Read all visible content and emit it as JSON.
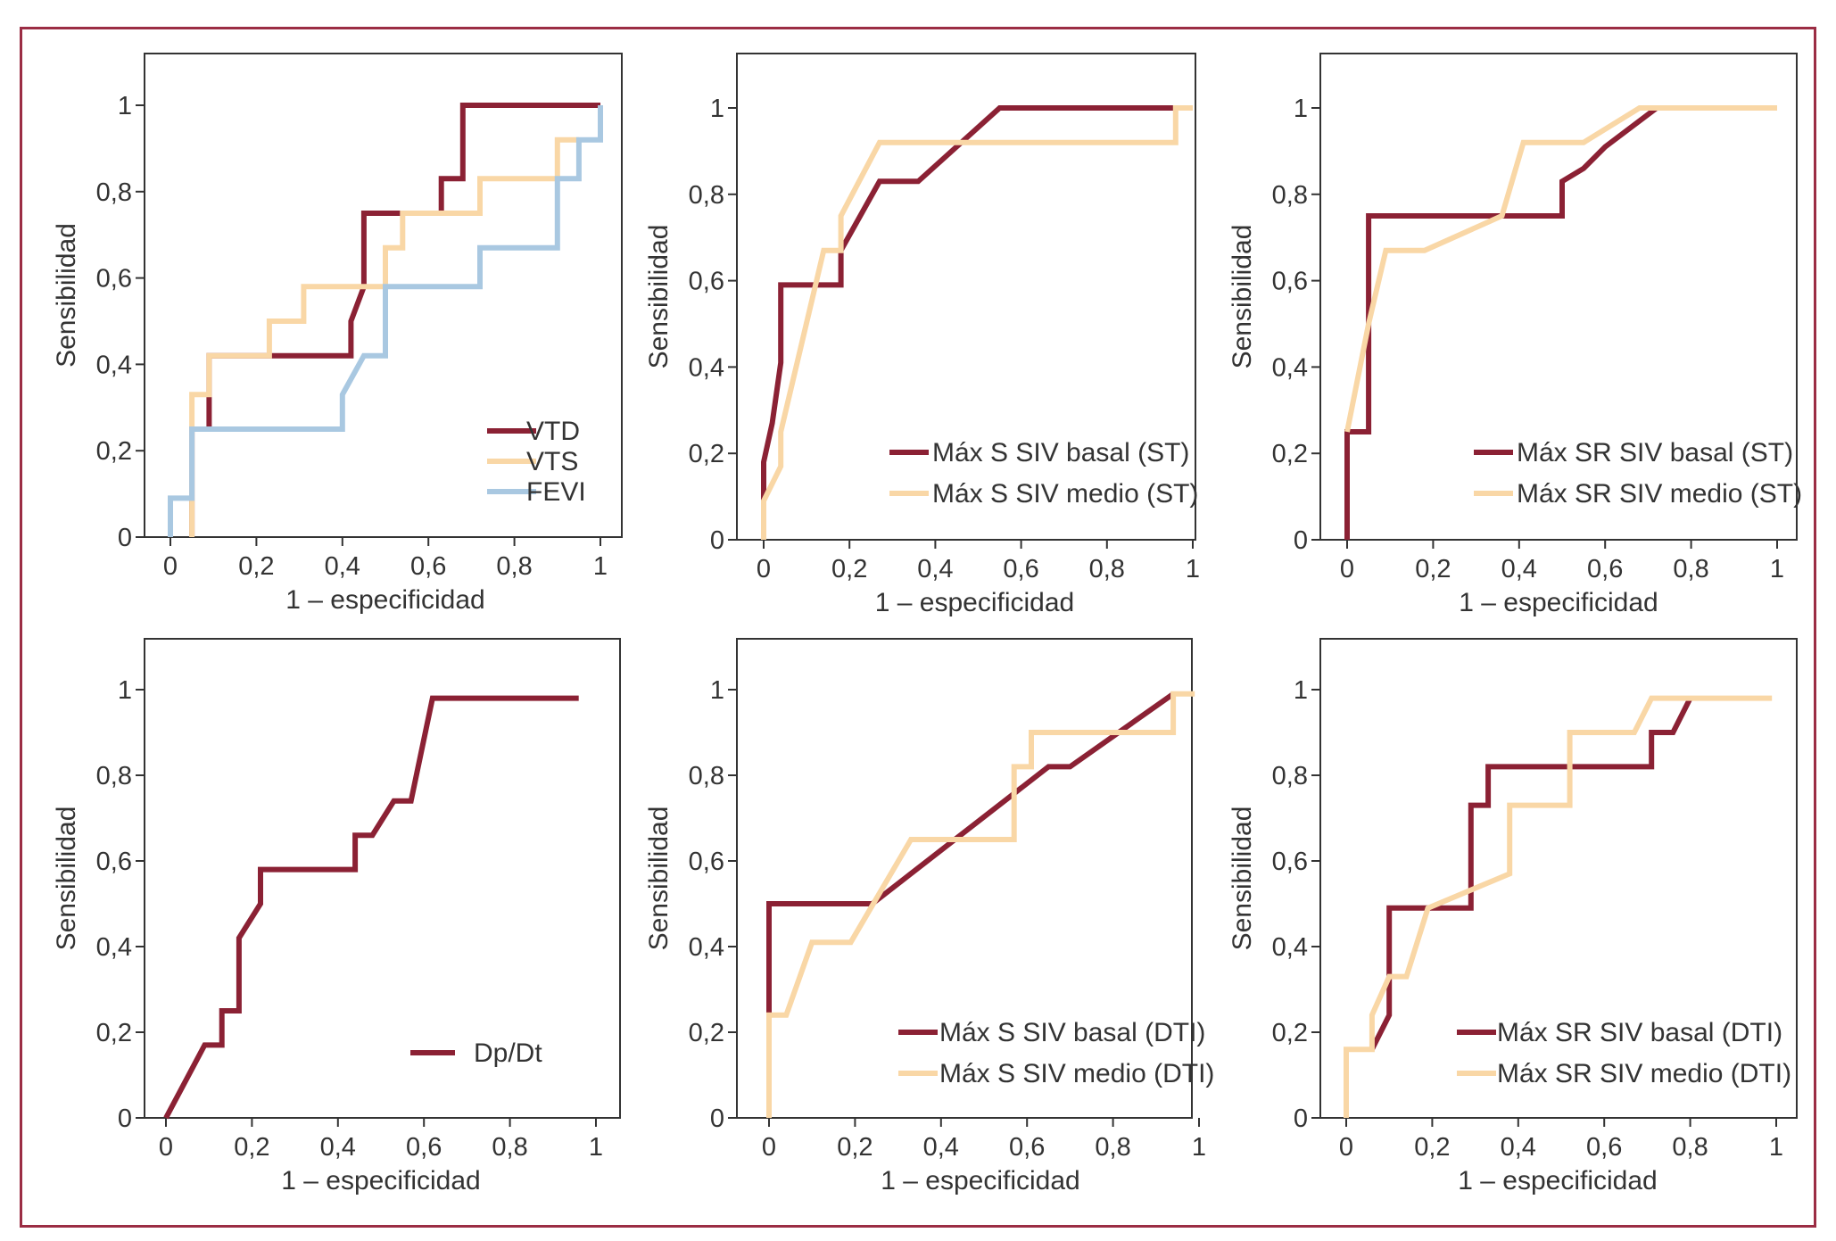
{
  "colors": {
    "dark_red": "#8b2134",
    "light_peach": "#f9d7a6",
    "light_blue": "#a9c8e1",
    "frame": "#9b2d44"
  },
  "chart_data": [
    {
      "type": "line",
      "xlabel": "1 – especificidad",
      "ylabel": "Sensibilidad",
      "xlim": [
        0,
        1
      ],
      "ylim": [
        0,
        1.1
      ],
      "xticks": [
        "0",
        "0,2",
        "0,4",
        "0,6",
        "0,8",
        "1"
      ],
      "yticks": [
        "0",
        "0,2",
        "0,4",
        "0,6",
        "0,8",
        "1"
      ],
      "legend_position": "bottom-right",
      "series": [
        {
          "name": "VTD",
          "color": "#8b2134",
          "x": [
            0.05,
            0.05,
            0.09,
            0.09,
            0.42,
            0.42,
            0.45,
            0.45,
            0.63,
            0.63,
            0.68,
            0.68,
            1.0
          ],
          "y": [
            0.0,
            0.25,
            0.25,
            0.42,
            0.42,
            0.5,
            0.58,
            0.75,
            0.75,
            0.83,
            0.83,
            1.0,
            1.0
          ]
        },
        {
          "name": "VTS",
          "color": "#f9d7a6",
          "x": [
            0.05,
            0.05,
            0.09,
            0.09,
            0.23,
            0.23,
            0.31,
            0.31,
            0.5,
            0.5,
            0.54,
            0.54,
            0.72,
            0.72,
            0.9,
            0.9,
            0.95
          ],
          "y": [
            0.0,
            0.33,
            0.33,
            0.42,
            0.42,
            0.5,
            0.5,
            0.58,
            0.58,
            0.67,
            0.67,
            0.75,
            0.75,
            0.83,
            0.83,
            0.92,
            0.92
          ]
        },
        {
          "name": "FEVI",
          "color": "#a9c8e1",
          "x": [
            0.0,
            0.0,
            0.05,
            0.05,
            0.4,
            0.4,
            0.45,
            0.45,
            0.5,
            0.5,
            0.72,
            0.72,
            0.9,
            0.9,
            0.95,
            0.95,
            1.0,
            1.0
          ],
          "y": [
            0.0,
            0.09,
            0.09,
            0.25,
            0.25,
            0.33,
            0.42,
            0.42,
            0.42,
            0.58,
            0.58,
            0.67,
            0.67,
            0.83,
            0.83,
            0.92,
            0.92,
            1.0
          ]
        }
      ]
    },
    {
      "type": "line",
      "xlabel": "1 – especificidad",
      "ylabel": "Sensibilidad",
      "xlim": [
        0,
        1
      ],
      "ylim": [
        0,
        1.1
      ],
      "xticks": [
        "0",
        "0,2",
        "0,4",
        "0,6",
        "0,8",
        "1"
      ],
      "yticks": [
        "0",
        "0,2",
        "0,4",
        "0,6",
        "0,8",
        "1"
      ],
      "legend_position": "bottom-right",
      "series": [
        {
          "name": "Máx S SIV basal (ST)",
          "color": "#8b2134",
          "x": [
            0.0,
            0.0,
            0.02,
            0.04,
            0.04,
            0.18,
            0.18,
            0.27,
            0.36,
            0.55,
            0.96
          ],
          "y": [
            0.0,
            0.18,
            0.27,
            0.41,
            0.59,
            0.59,
            0.67,
            0.83,
            0.83,
            1.0,
            1.0
          ]
        },
        {
          "name": "Máx S SIV medio (ST)",
          "color": "#f9d7a6",
          "x": [
            0.0,
            0.0,
            0.04,
            0.04,
            0.14,
            0.14,
            0.18,
            0.18,
            0.27,
            0.96,
            0.96,
            1.0
          ],
          "y": [
            0.0,
            0.09,
            0.17,
            0.25,
            0.67,
            0.67,
            0.67,
            0.75,
            0.92,
            0.92,
            1.0,
            1.0
          ]
        }
      ]
    },
    {
      "type": "line",
      "xlabel": "1 – especificidad",
      "ylabel": "Sensibilidad",
      "xlim": [
        0,
        1
      ],
      "ylim": [
        0,
        1.1
      ],
      "xticks": [
        "0",
        "0,2",
        "0,4",
        "0,6",
        "0,8",
        "1"
      ],
      "yticks": [
        "0",
        "0,2",
        "0,4",
        "0,6",
        "0,8",
        "1"
      ],
      "legend_position": "bottom-right",
      "series": [
        {
          "name": "Máx SR SIV basal (ST)",
          "color": "#8b2134",
          "x": [
            0.0,
            0.0,
            0.05,
            0.05,
            0.5,
            0.5,
            0.55,
            0.6,
            0.72
          ],
          "y": [
            0.0,
            0.25,
            0.25,
            0.75,
            0.75,
            0.83,
            0.86,
            0.91,
            1.0
          ]
        },
        {
          "name": "Máx SR SIV medio (ST)",
          "color": "#f9d7a6",
          "x": [
            0.0,
            0.05,
            0.09,
            0.18,
            0.36,
            0.41,
            0.55,
            0.68,
            1.0
          ],
          "y": [
            0.25,
            0.5,
            0.67,
            0.67,
            0.75,
            0.92,
            0.92,
            1.0,
            1.0
          ]
        }
      ]
    },
    {
      "type": "line",
      "xlabel": "1 – especificidad",
      "ylabel": "Sensibilidad",
      "xlim": [
        0,
        1
      ],
      "ylim": [
        0,
        1.1
      ],
      "xticks": [
        "0",
        "0,2",
        "0,4",
        "0,6",
        "0,8",
        "1"
      ],
      "yticks": [
        "0",
        "0,2",
        "0,4",
        "0,6",
        "0,8",
        "1"
      ],
      "legend_position": "bottom-right",
      "series": [
        {
          "name": "Dp/Dt",
          "color": "#8b2134",
          "x": [
            0.0,
            0.09,
            0.13,
            0.13,
            0.17,
            0.17,
            0.22,
            0.22,
            0.44,
            0.44,
            0.48,
            0.53,
            0.57,
            0.62,
            0.96
          ],
          "y": [
            0.0,
            0.17,
            0.17,
            0.25,
            0.25,
            0.42,
            0.5,
            0.58,
            0.58,
            0.66,
            0.66,
            0.74,
            0.74,
            0.98,
            0.98
          ]
        }
      ]
    },
    {
      "type": "line",
      "xlabel": "1 – especificidad",
      "ylabel": "Sensibilidad",
      "xlim": [
        0,
        1
      ],
      "ylim": [
        0,
        1.1
      ],
      "xticks": [
        "0",
        "0,2",
        "0,4",
        "0,6",
        "0,8",
        "1"
      ],
      "yticks": [
        "0",
        "0,2",
        "0,4",
        "0,6",
        "0,8",
        "1"
      ],
      "legend_position": "bottom-right",
      "series": [
        {
          "name": "Máx S SIV basal (DTI)",
          "color": "#8b2134",
          "x": [
            0.0,
            0.0,
            0.0,
            0.24,
            0.65,
            0.7,
            0.94
          ],
          "y": [
            0.0,
            0.25,
            0.5,
            0.5,
            0.82,
            0.82,
            0.99
          ]
        },
        {
          "name": "Máx S SIV medio (DTI)",
          "color": "#f9d7a6",
          "x": [
            0.0,
            0.0,
            0.04,
            0.1,
            0.19,
            0.33,
            0.57,
            0.57,
            0.61,
            0.61,
            0.94,
            0.94,
            0.99
          ],
          "y": [
            0.0,
            0.24,
            0.24,
            0.41,
            0.41,
            0.65,
            0.65,
            0.82,
            0.82,
            0.9,
            0.9,
            0.99,
            0.99
          ]
        }
      ]
    },
    {
      "type": "line",
      "xlabel": "1 – especificidad",
      "ylabel": "Sensibilidad",
      "xlim": [
        0,
        1
      ],
      "ylim": [
        0,
        1.1
      ],
      "xticks": [
        "0",
        "0,2",
        "0,4",
        "0,6",
        "0,8",
        "1"
      ],
      "yticks": [
        "0",
        "0,2",
        "0,4",
        "0,6",
        "0,8",
        "1"
      ],
      "legend_position": "bottom-right",
      "series": [
        {
          "name": "Máx SR SIV basal (DTI)",
          "color": "#8b2134",
          "x": [
            0.06,
            0.1,
            0.1,
            0.29,
            0.29,
            0.33,
            0.33,
            0.71,
            0.71,
            0.76,
            0.8
          ],
          "y": [
            0.16,
            0.24,
            0.49,
            0.49,
            0.73,
            0.73,
            0.82,
            0.82,
            0.9,
            0.9,
            0.98
          ]
        },
        {
          "name": "Máx SR SIV medio (DTI)",
          "color": "#f9d7a6",
          "x": [
            0.0,
            0.0,
            0.06,
            0.06,
            0.1,
            0.14,
            0.19,
            0.38,
            0.38,
            0.52,
            0.52,
            0.67,
            0.71,
            0.99
          ],
          "y": [
            0.0,
            0.16,
            0.16,
            0.24,
            0.33,
            0.33,
            0.49,
            0.57,
            0.73,
            0.73,
            0.9,
            0.9,
            0.98,
            0.98
          ]
        }
      ]
    }
  ]
}
